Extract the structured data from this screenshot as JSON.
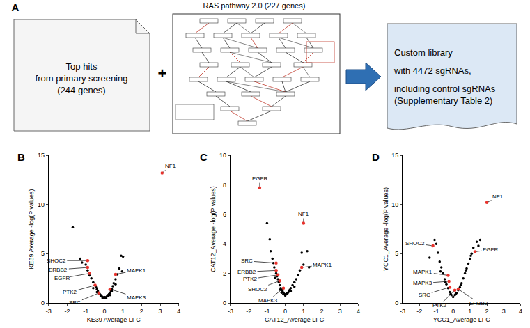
{
  "diagram": {
    "panel": "A",
    "left_box": [
      "Top hits",
      "from primary screening",
      "(244 genes)"
    ],
    "middle_title": "RAS pathway 2.0 (227 genes)",
    "plus": "+",
    "right_box": [
      "Custom library",
      "with 4472 sgRNAs,",
      "including control sgRNAs",
      "(Supplementary Table 2)"
    ]
  },
  "chart_data": [
    {
      "type": "scatter",
      "panel": "B",
      "x_label": "KE39 Average LFC",
      "y_label": "KE39 Average -log(P values)",
      "xlim": [
        -3,
        4
      ],
      "xticks": [
        -3,
        -2,
        -1,
        0,
        1,
        2,
        3,
        4
      ],
      "ylim": [
        0,
        15
      ],
      "yticks": [
        0,
        5,
        10,
        15
      ],
      "color": "#000000",
      "x": [
        -1.7,
        -1.3,
        -1.2,
        -1.0,
        -0.9,
        -0.8,
        -0.7,
        -0.6,
        -0.5,
        -0.45,
        -0.4,
        -0.35,
        -0.3,
        -0.25,
        -0.2,
        -0.15,
        -0.1,
        -0.05,
        0,
        0.05,
        0.1,
        0.15,
        0.2,
        0.25,
        0.3,
        0.35,
        0.4,
        0.45,
        0.5,
        0.6,
        0.7,
        0.8,
        0.9,
        0.95,
        1.0,
        -0.6,
        -0.4,
        -0.2,
        0.2,
        0.4,
        0.6,
        0.1,
        -0.1,
        0,
        0.3,
        -0.3
      ],
      "y": [
        7.7,
        4.5,
        4.1,
        3.9,
        3.3,
        2.8,
        2.5,
        2.1,
        1.8,
        1.6,
        1.4,
        1.2,
        1.0,
        0.9,
        0.8,
        0.7,
        0.6,
        0.55,
        0.5,
        0.55,
        0.6,
        0.7,
        0.8,
        0.9,
        1.0,
        1.2,
        1.4,
        1.7,
        2.0,
        2.4,
        2.9,
        3.5,
        4.8,
        3.2,
        4.7,
        1.5,
        1.1,
        0.7,
        0.7,
        1.2,
        1.9,
        0.5,
        0.5,
        0.6,
        0.8,
        0.9
      ],
      "highlights": {
        "color": "#e8322c",
        "labels": [
          "NF1",
          "SHOC2",
          "ERBB2",
          "EGFR",
          "PTK2",
          "SRC",
          "MAPK1",
          "MAPK3"
        ],
        "x": [
          3.1,
          -0.9,
          -0.9,
          -0.8,
          -0.5,
          -0.3,
          0.6,
          0.3
        ],
        "y": [
          13.2,
          4.3,
          3.6,
          3.0,
          1.8,
          1.0,
          2.9,
          1.4
        ]
      }
    },
    {
      "type": "scatter",
      "panel": "C",
      "x_label": "CAT12_Average LFC",
      "y_label": "CAT12_Average -log(P values)",
      "xlim": [
        -3,
        4
      ],
      "xticks": [
        -3,
        -2,
        -1,
        0,
        1,
        2,
        3,
        4
      ],
      "ylim": [
        0,
        10
      ],
      "yticks": [
        0,
        2,
        4,
        6,
        8,
        10
      ],
      "color": "#000000",
      "x": [
        -1.0,
        -0.85,
        -0.8,
        -0.7,
        -0.65,
        -0.6,
        -0.5,
        -0.45,
        -0.4,
        -0.35,
        -0.3,
        -0.25,
        -0.2,
        -0.15,
        -0.1,
        -0.05,
        0,
        0.05,
        0.1,
        0.15,
        0.2,
        0.25,
        0.3,
        0.4,
        0.5,
        0.6,
        0.7,
        0.8,
        0.9,
        1.0,
        1.2,
        1.3,
        -0.55,
        -0.3,
        -0.1,
        0.1,
        0.3,
        0.5,
        0,
        -0.2
      ],
      "y": [
        5.4,
        4.3,
        3.5,
        3.0,
        2.7,
        2.4,
        2.0,
        1.8,
        1.6,
        1.4,
        1.2,
        1.0,
        0.9,
        0.8,
        0.7,
        0.6,
        0.55,
        0.6,
        0.65,
        0.7,
        0.8,
        0.9,
        1.0,
        1.2,
        1.4,
        1.6,
        1.9,
        2.2,
        3.4,
        2.6,
        3.5,
        2.4,
        1.7,
        0.9,
        0.6,
        0.6,
        0.8,
        1.1,
        0.5,
        0.7
      ],
      "highlights": {
        "color": "#e8322c",
        "labels": [
          "EGFR",
          "NF1",
          "SRC",
          "ERBB2",
          "PTK2",
          "SHOC2",
          "MAPK3",
          "MAPK1"
        ],
        "x": [
          -1.4,
          1.0,
          -0.5,
          -0.5,
          -0.4,
          -0.3,
          -0.1,
          0.9
        ],
        "y": [
          7.8,
          5.4,
          2.7,
          2.2,
          1.9,
          1.5,
          1.0,
          2.4
        ]
      }
    },
    {
      "type": "scatter",
      "panel": "D",
      "x_label": "YCC1_Average LFC",
      "y_label": "YCC1_Average -log(P values)",
      "xlim": [
        -3,
        4
      ],
      "xticks": [
        -3,
        -2,
        -1,
        0,
        1,
        2,
        3,
        4
      ],
      "ylim": [
        0,
        15
      ],
      "yticks": [
        0,
        5,
        10,
        15
      ],
      "color": "#000000",
      "x": [
        -1.4,
        -1.1,
        -1.0,
        -0.9,
        -0.8,
        -0.7,
        -0.6,
        -0.5,
        -0.4,
        -0.3,
        -0.2,
        -0.1,
        0,
        0.1,
        0.2,
        0.3,
        0.4,
        0.5,
        0.6,
        0.7,
        0.8,
        0.9,
        1.0,
        1.1,
        1.2,
        1.4,
        1.5,
        1.6,
        -0.75,
        -0.45,
        -0.15,
        0.15,
        0.45,
        0.75,
        1.05
      ],
      "y": [
        4.6,
        6.4,
        6.0,
        5.1,
        4.2,
        3.6,
        3.0,
        2.4,
        1.9,
        1.5,
        1.1,
        0.8,
        0.6,
        0.8,
        1.0,
        1.3,
        1.6,
        2.0,
        2.5,
        3.0,
        3.5,
        4.0,
        4.5,
        5.0,
        5.6,
        6.2,
        5.8,
        6.4,
        3.2,
        2.1,
        0.9,
        0.9,
        1.8,
        3.3,
        4.8
      ],
      "highlights": {
        "color": "#e8322c",
        "labels": [
          "NF1",
          "SHOC2",
          "EGFR",
          "MAPK1",
          "MAPK3",
          "SRC",
          "PTK2",
          "ERBB2"
        ],
        "x": [
          2.0,
          -1.2,
          1.3,
          -0.3,
          -0.25,
          -0.2,
          0.1,
          0.3
        ],
        "y": [
          10.2,
          5.8,
          5.2,
          2.8,
          2.2,
          1.6,
          1.3,
          1.4
        ]
      }
    }
  ]
}
